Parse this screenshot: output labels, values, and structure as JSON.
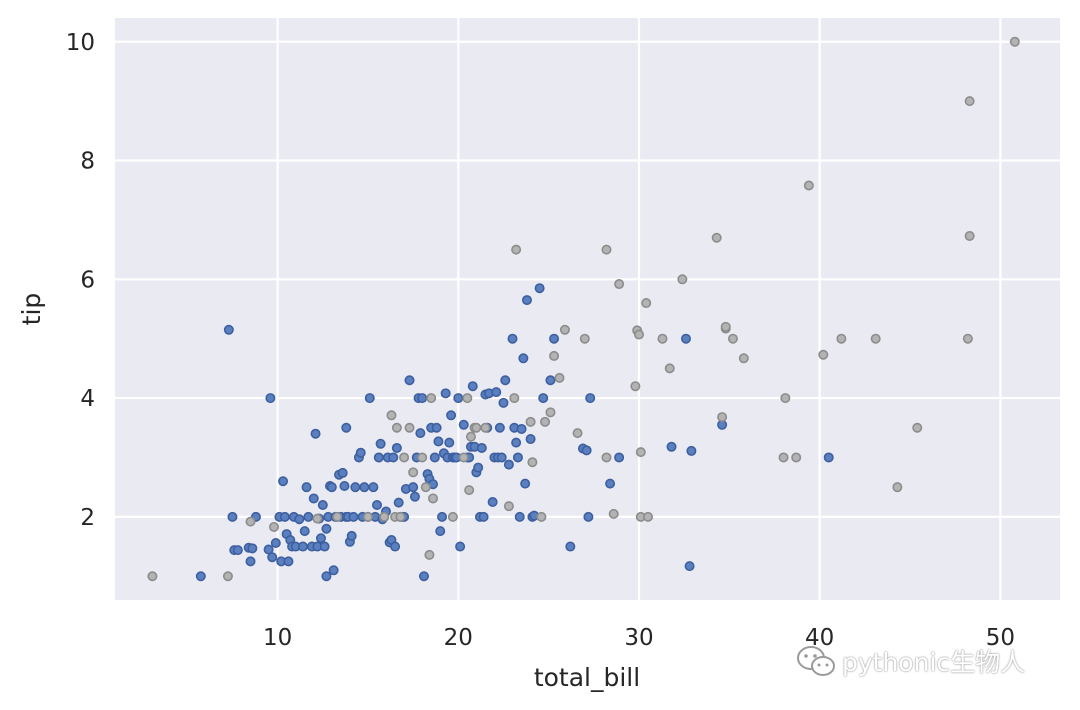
{
  "chart_data": {
    "type": "scatter",
    "xlabel": "total_bill",
    "ylabel": "tip",
    "xlim": [
      1,
      53.3
    ],
    "ylim": [
      0.6,
      10.4
    ],
    "xticks": [
      10,
      20,
      30,
      40,
      50
    ],
    "yticks": [
      2,
      4,
      6,
      8,
      10
    ],
    "grid": true,
    "legend": "none",
    "colors": {
      "background": "#eaeaf2",
      "grid": "#ffffff",
      "blue_face": "#5b80c0",
      "blue_edge": "#3d5fa0",
      "gray_face": "#b3b3b3",
      "gray_edge": "#8c8c8c"
    },
    "series": [
      {
        "color_key": "blue",
        "points": [
          [
            7.3,
            5.15
          ],
          [
            9.6,
            4.0
          ],
          [
            5.75,
            1.0
          ],
          [
            7.5,
            2.0
          ],
          [
            7.6,
            1.44
          ],
          [
            7.8,
            1.44
          ],
          [
            8.4,
            1.48
          ],
          [
            8.5,
            1.25
          ],
          [
            8.6,
            1.47
          ],
          [
            8.8,
            2.0
          ],
          [
            9.5,
            1.45
          ],
          [
            9.7,
            1.32
          ],
          [
            9.9,
            1.56
          ],
          [
            10.1,
            2.0
          ],
          [
            10.2,
            1.25
          ],
          [
            10.3,
            2.6
          ],
          [
            10.4,
            2.0
          ],
          [
            10.5,
            1.71
          ],
          [
            10.6,
            1.25
          ],
          [
            10.7,
            1.61
          ],
          [
            10.8,
            1.5
          ],
          [
            10.9,
            2.0
          ],
          [
            11.0,
            1.5
          ],
          [
            11.2,
            1.96
          ],
          [
            11.4,
            1.5
          ],
          [
            11.5,
            1.76
          ],
          [
            11.6,
            2.5
          ],
          [
            11.7,
            2.0
          ],
          [
            11.9,
            1.5
          ],
          [
            12.0,
            2.31
          ],
          [
            12.1,
            3.4
          ],
          [
            12.2,
            1.5
          ],
          [
            12.3,
            1.97
          ],
          [
            12.4,
            1.64
          ],
          [
            12.5,
            2.2
          ],
          [
            12.6,
            1.5
          ],
          [
            12.7,
            1.8
          ],
          [
            12.8,
            2.0
          ],
          [
            12.9,
            2.52
          ],
          [
            13.0,
            2.5
          ],
          [
            12.7,
            1.0
          ],
          [
            13.1,
            1.1
          ],
          [
            13.2,
            2.0
          ],
          [
            13.3,
            2.0
          ],
          [
            13.4,
            2.71
          ],
          [
            13.5,
            2.0
          ],
          [
            13.6,
            2.74
          ],
          [
            13.7,
            2.52
          ],
          [
            13.8,
            2.0
          ],
          [
            13.9,
            2.0
          ],
          [
            13.8,
            3.5
          ],
          [
            14.0,
            1.58
          ],
          [
            14.1,
            1.68
          ],
          [
            14.2,
            2.0
          ],
          [
            14.3,
            2.5
          ],
          [
            14.5,
            3.0
          ],
          [
            14.6,
            3.08
          ],
          [
            14.7,
            2.0
          ],
          [
            14.8,
            2.5
          ],
          [
            15.0,
            2.0
          ],
          [
            15.1,
            4.0
          ],
          [
            15.3,
            2.5
          ],
          [
            15.4,
            2.0
          ],
          [
            15.5,
            2.2
          ],
          [
            15.6,
            3.0
          ],
          [
            15.7,
            3.23
          ],
          [
            15.8,
            1.96
          ],
          [
            15.9,
            2.0
          ],
          [
            16.0,
            2.09
          ],
          [
            16.1,
            3.0
          ],
          [
            16.2,
            1.57
          ],
          [
            16.3,
            1.61
          ],
          [
            16.4,
            3.0
          ],
          [
            16.5,
            1.5
          ],
          [
            16.6,
            3.16
          ],
          [
            16.7,
            2.24
          ],
          [
            16.8,
            2.0
          ],
          [
            16.9,
            2.0
          ],
          [
            17.0,
            2.0
          ],
          [
            17.1,
            2.47
          ],
          [
            17.3,
            4.3
          ],
          [
            17.5,
            2.5
          ],
          [
            17.6,
            2.34
          ],
          [
            17.7,
            3.0
          ],
          [
            17.8,
            4.0
          ],
          [
            17.9,
            3.41
          ],
          [
            18.0,
            4.0
          ],
          [
            18.1,
            1.0
          ],
          [
            18.3,
            2.72
          ],
          [
            18.4,
            2.64
          ],
          [
            18.5,
            3.5
          ],
          [
            18.6,
            2.55
          ],
          [
            18.7,
            3.0
          ],
          [
            18.8,
            3.5
          ],
          [
            18.9,
            3.27
          ],
          [
            19.0,
            1.76
          ],
          [
            19.1,
            2.0
          ],
          [
            19.2,
            3.07
          ],
          [
            19.3,
            4.08
          ],
          [
            19.4,
            3.0
          ],
          [
            19.5,
            3.25
          ],
          [
            19.6,
            3.71
          ],
          [
            19.7,
            3.0
          ],
          [
            19.8,
            3.0
          ],
          [
            19.9,
            3.0
          ],
          [
            20.0,
            4.0
          ],
          [
            20.1,
            1.5
          ],
          [
            20.3,
            3.55
          ],
          [
            20.5,
            3.0
          ],
          [
            20.6,
            3.0
          ],
          [
            20.7,
            3.18
          ],
          [
            20.8,
            4.2
          ],
          [
            20.9,
            3.18
          ],
          [
            21.0,
            2.75
          ],
          [
            21.1,
            2.83
          ],
          [
            21.2,
            2.0
          ],
          [
            21.3,
            3.16
          ],
          [
            21.4,
            2.0
          ],
          [
            21.5,
            4.06
          ],
          [
            21.6,
            3.5
          ],
          [
            21.7,
            4.08
          ],
          [
            21.9,
            2.25
          ],
          [
            22.0,
            3.0
          ],
          [
            22.1,
            4.1
          ],
          [
            22.2,
            3.0
          ],
          [
            22.3,
            3.5
          ],
          [
            22.4,
            3.0
          ],
          [
            22.5,
            3.92
          ],
          [
            22.6,
            4.3
          ],
          [
            22.8,
            2.88
          ],
          [
            23.0,
            5.0
          ],
          [
            23.1,
            3.5
          ],
          [
            23.2,
            3.25
          ],
          [
            23.3,
            3.0
          ],
          [
            23.4,
            2.0
          ],
          [
            23.5,
            3.48
          ],
          [
            23.6,
            4.67
          ],
          [
            23.7,
            2.56
          ],
          [
            23.8,
            5.65
          ],
          [
            24.0,
            3.31
          ],
          [
            24.1,
            2.0
          ],
          [
            24.2,
            2.02
          ],
          [
            24.5,
            5.85
          ],
          [
            24.7,
            4.0
          ],
          [
            25.1,
            4.3
          ],
          [
            25.3,
            5.0
          ],
          [
            26.2,
            1.5
          ],
          [
            26.9,
            3.15
          ],
          [
            27.1,
            3.12
          ],
          [
            27.2,
            2.0
          ],
          [
            27.3,
            4.0
          ],
          [
            28.4,
            2.56
          ],
          [
            28.9,
            3.0
          ],
          [
            31.8,
            3.18
          ],
          [
            32.6,
            5.0
          ],
          [
            32.8,
            1.17
          ],
          [
            32.9,
            3.11
          ],
          [
            34.6,
            3.55
          ],
          [
            40.5,
            3.0
          ]
        ]
      },
      {
        "color_key": "gray",
        "points": [
          [
            3.07,
            1.0
          ],
          [
            7.25,
            1.0
          ],
          [
            8.5,
            1.92
          ],
          [
            9.8,
            1.83
          ],
          [
            12.2,
            1.97
          ],
          [
            13.3,
            2.0
          ],
          [
            15.0,
            2.0
          ],
          [
            15.9,
            2.0
          ],
          [
            16.3,
            3.71
          ],
          [
            16.5,
            2.0
          ],
          [
            16.6,
            3.5
          ],
          [
            16.8,
            2.0
          ],
          [
            17.0,
            3.0
          ],
          [
            17.3,
            3.5
          ],
          [
            17.5,
            2.75
          ],
          [
            18.0,
            3.0
          ],
          [
            18.2,
            2.5
          ],
          [
            18.4,
            1.36
          ],
          [
            18.5,
            4.0
          ],
          [
            18.6,
            2.31
          ],
          [
            19.7,
            2.0
          ],
          [
            20.3,
            3.0
          ],
          [
            20.5,
            4.0
          ],
          [
            20.6,
            2.45
          ],
          [
            20.7,
            3.35
          ],
          [
            20.9,
            3.5
          ],
          [
            21.0,
            3.5
          ],
          [
            21.5,
            3.5
          ],
          [
            22.8,
            2.18
          ],
          [
            23.1,
            4.0
          ],
          [
            23.2,
            6.5
          ],
          [
            24.0,
            3.6
          ],
          [
            24.1,
            2.92
          ],
          [
            24.6,
            2.0
          ],
          [
            24.8,
            3.6
          ],
          [
            25.1,
            3.76
          ],
          [
            25.3,
            4.71
          ],
          [
            25.6,
            4.34
          ],
          [
            25.9,
            5.15
          ],
          [
            26.6,
            3.41
          ],
          [
            27.0,
            5.0
          ],
          [
            28.2,
            6.5
          ],
          [
            28.6,
            2.05
          ],
          [
            28.2,
            3.0
          ],
          [
            28.9,
            5.92
          ],
          [
            29.8,
            4.2
          ],
          [
            29.9,
            5.14
          ],
          [
            30.0,
            5.07
          ],
          [
            30.1,
            3.09
          ],
          [
            30.4,
            5.6
          ],
          [
            30.1,
            2.0
          ],
          [
            30.5,
            2.0
          ],
          [
            31.3,
            5.0
          ],
          [
            31.7,
            4.5
          ],
          [
            32.4,
            6.0
          ],
          [
            34.3,
            6.7
          ],
          [
            34.6,
            3.68
          ],
          [
            34.8,
            5.17
          ],
          [
            34.8,
            5.2
          ],
          [
            35.2,
            5.0
          ],
          [
            35.8,
            4.67
          ],
          [
            38.1,
            4.0
          ],
          [
            38.0,
            3.0
          ],
          [
            38.7,
            3.0
          ],
          [
            39.4,
            7.58
          ],
          [
            40.2,
            4.73
          ],
          [
            41.2,
            5.0
          ],
          [
            43.1,
            5.0
          ],
          [
            44.3,
            2.5
          ],
          [
            45.4,
            3.5
          ],
          [
            48.2,
            5.0
          ],
          [
            48.3,
            6.73
          ],
          [
            48.3,
            9.0
          ],
          [
            50.8,
            10.0
          ]
        ]
      }
    ]
  },
  "watermark": {
    "text": "pythonic生物人",
    "icon": "wechat-icon"
  }
}
